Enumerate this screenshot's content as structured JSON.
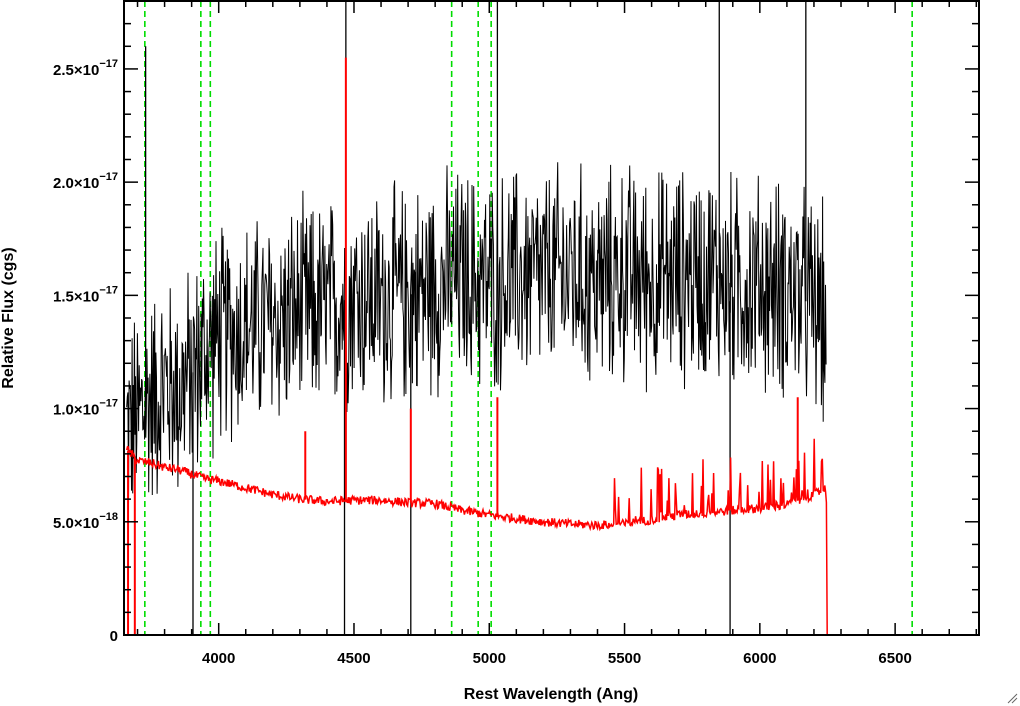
{
  "chart_data": {
    "type": "line",
    "xlabel": "Rest Wavelength (Ang)",
    "ylabel": "Relative Flux (cgs)",
    "xlim": [
      3650,
      6810
    ],
    "ylim": [
      0,
      2.8e-17
    ],
    "x_ticks": [
      {
        "value": 4000,
        "label": "4000"
      },
      {
        "value": 4500,
        "label": "4500"
      },
      {
        "value": 5000,
        "label": "5000"
      },
      {
        "value": 5500,
        "label": "5500"
      },
      {
        "value": 6000,
        "label": "6000"
      },
      {
        "value": 6500,
        "label": "6500"
      }
    ],
    "y_ticks": [
      {
        "value": 0,
        "mantissa": "0",
        "exponent": ""
      },
      {
        "value": 5e-18,
        "mantissa": "5.0×10",
        "exponent": "−18"
      },
      {
        "value": 1e-17,
        "mantissa": "1.0×10",
        "exponent": "−17"
      },
      {
        "value": 1.5e-17,
        "mantissa": "1.5×10",
        "exponent": "−17"
      },
      {
        "value": 2e-17,
        "mantissa": "2.0×10",
        "exponent": "−17"
      },
      {
        "value": 2.5e-17,
        "mantissa": "2.5×10",
        "exponent": "−17"
      }
    ],
    "grid": false,
    "legend": "none",
    "colors": {
      "observed": "#000000",
      "model": "#ff0000",
      "lines": "#00dd00"
    },
    "series": [
      {
        "x": [
          3660,
          3700,
          3750,
          3800,
          3850,
          3900,
          3950,
          4000,
          4100,
          4200,
          4300,
          4400,
          4500,
          4600,
          4700,
          4800,
          4900,
          5000,
          5100,
          5200,
          5300,
          5400,
          5500,
          5600,
          5700,
          5800,
          5900,
          6000,
          6100,
          6200,
          6245
        ],
        "y": [
          9e-18,
          9.6e-18,
          1.05e-17,
          1.1e-17,
          1.08e-17,
          1.15e-17,
          1.25e-17,
          1.32e-17,
          1.36e-17,
          1.38e-17,
          1.42e-17,
          1.44e-17,
          1.5e-17,
          1.48e-17,
          1.5e-17,
          1.55e-17,
          1.58e-17,
          1.55e-17,
          1.58e-17,
          1.58e-17,
          1.6e-17,
          1.55e-17,
          1.6e-17,
          1.57e-17,
          1.58e-17,
          1.6e-17,
          1.55e-17,
          1.55e-17,
          1.53e-17,
          1.45e-17,
          1.4e-17
        ],
        "scatter": 4.5e-18
      },
      {
        "x": [
          3660,
          3700,
          3750,
          3800,
          3850,
          3900,
          3950,
          4000,
          4100,
          4200,
          4300,
          4400,
          4500,
          4600,
          4700,
          4800,
          4900,
          5000,
          5100,
          5200,
          5300,
          5400,
          5500,
          5600,
          5700,
          5800,
          5900,
          6000,
          6100,
          6200,
          6245,
          6255,
          6810
        ],
        "y": [
          8.2e-18,
          7.7e-18,
          7.6e-18,
          7.4e-18,
          7.3e-18,
          7.1e-18,
          6.9e-18,
          6.8e-18,
          6.5e-18,
          6.2e-18,
          6e-18,
          5.9e-18,
          5.95e-18,
          5.95e-18,
          5.85e-18,
          5.8e-18,
          5.5e-18,
          5.3e-18,
          5.15e-18,
          5e-18,
          4.9e-18,
          4.85e-18,
          4.9e-18,
          5.1e-18,
          5.3e-18,
          5.4e-18,
          5.5e-18,
          5.6e-18,
          5.75e-18,
          6.2e-18,
          6.5e-18,
          0,
          0
        ]
      }
    ],
    "reference_lines_x": [
      3727,
      3934,
      3969,
      4861,
      4959,
      5007,
      6563
    ],
    "emission_spikes_observed": [
      {
        "x": 3730,
        "y": 2.6e-17
      },
      {
        "x": 4470,
        "y": 2.9e-17
      },
      {
        "x": 5030,
        "y": 2.9e-17
      },
      {
        "x": 5850,
        "y": 2.9e-17
      },
      {
        "x": 6170,
        "y": 2.9e-17
      }
    ],
    "absorption_spikes_observed": [
      {
        "x": 3905,
        "y": 0
      },
      {
        "x": 4465,
        "y": 0
      },
      {
        "x": 4710,
        "y": 0
      },
      {
        "x": 5890,
        "y": 0
      }
    ],
    "model_spikes": [
      {
        "x": 4470,
        "y": 2.55e-17
      },
      {
        "x": 4710,
        "y": 1e-17
      },
      {
        "x": 5030,
        "y": 1.05e-17
      },
      {
        "x": 4320,
        "y": 9e-18
      },
      {
        "x": 6140,
        "y": 1.05e-17
      }
    ]
  }
}
